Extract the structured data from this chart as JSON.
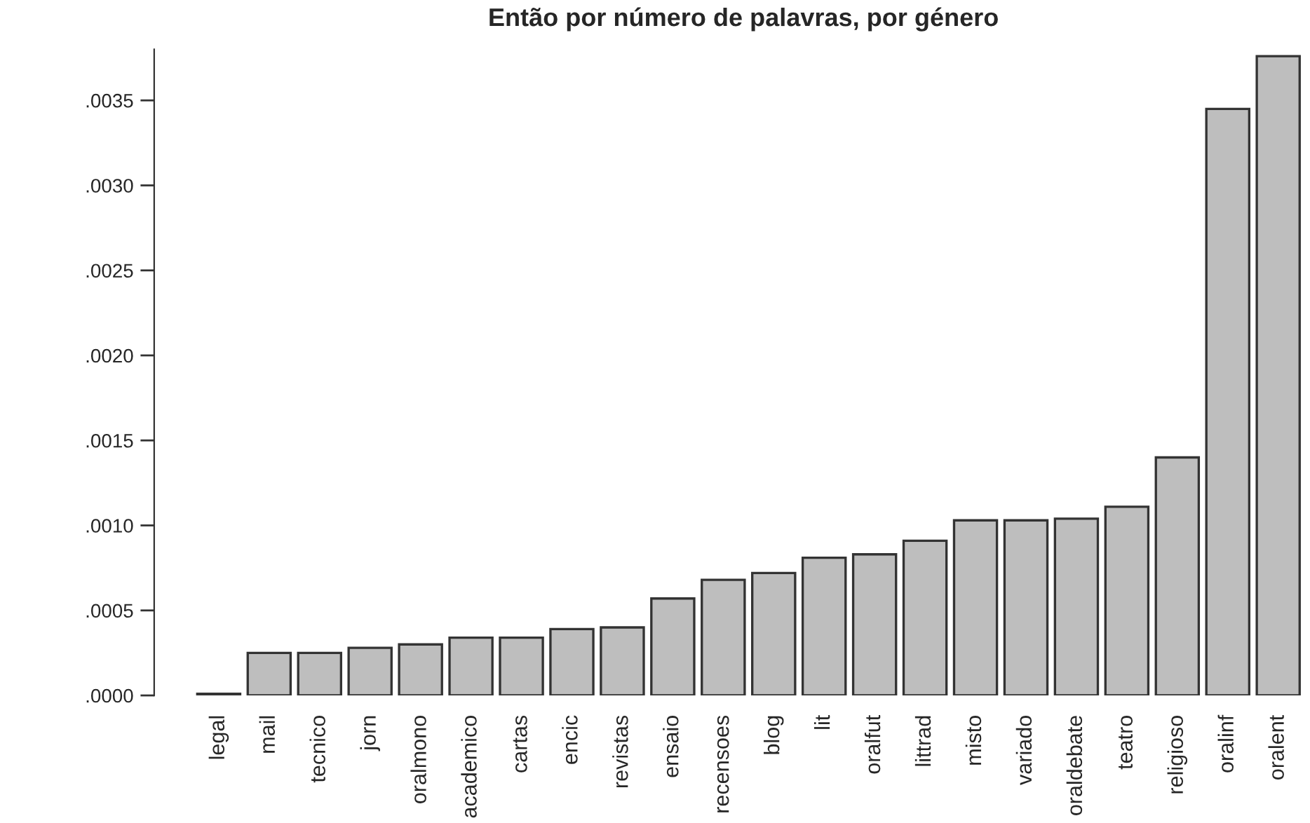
{
  "chart_data": {
    "type": "bar",
    "title": "Então por número de palavras, por género",
    "categories": [
      "legal",
      "mail",
      "tecnico",
      "jorn",
      "oralmono",
      "academico",
      "cartas",
      "encic",
      "revistas",
      "ensaio",
      "recensoes",
      "blog",
      "lit",
      "oralfut",
      "littrad",
      "misto",
      "variado",
      "oraldebate",
      "teatro",
      "religioso",
      "oralinf",
      "oralent"
    ],
    "values": [
      1e-05,
      0.00025,
      0.00025,
      0.00028,
      0.0003,
      0.00034,
      0.00034,
      0.00039,
      0.0004,
      0.00057,
      0.00068,
      0.00072,
      0.00081,
      0.00083,
      0.00091,
      0.00103,
      0.00103,
      0.00104,
      0.00111,
      0.0014,
      0.00345,
      0.00376
    ],
    "color": "#bebebe",
    "ylim": [
      0,
      0.0038
    ],
    "yticks": [
      {
        "value": 0,
        "label": ".0000"
      },
      {
        "value": 0.0005,
        "label": ".0005"
      },
      {
        "value": 0.001,
        "label": ".0010"
      },
      {
        "value": 0.0015,
        "label": ".0015"
      },
      {
        "value": 0.002,
        "label": ".0020"
      },
      {
        "value": 0.0025,
        "label": ".0025"
      },
      {
        "value": 0.003,
        "label": ".0030"
      },
      {
        "value": 0.0035,
        "label": ".0035"
      }
    ],
    "grid": false
  }
}
